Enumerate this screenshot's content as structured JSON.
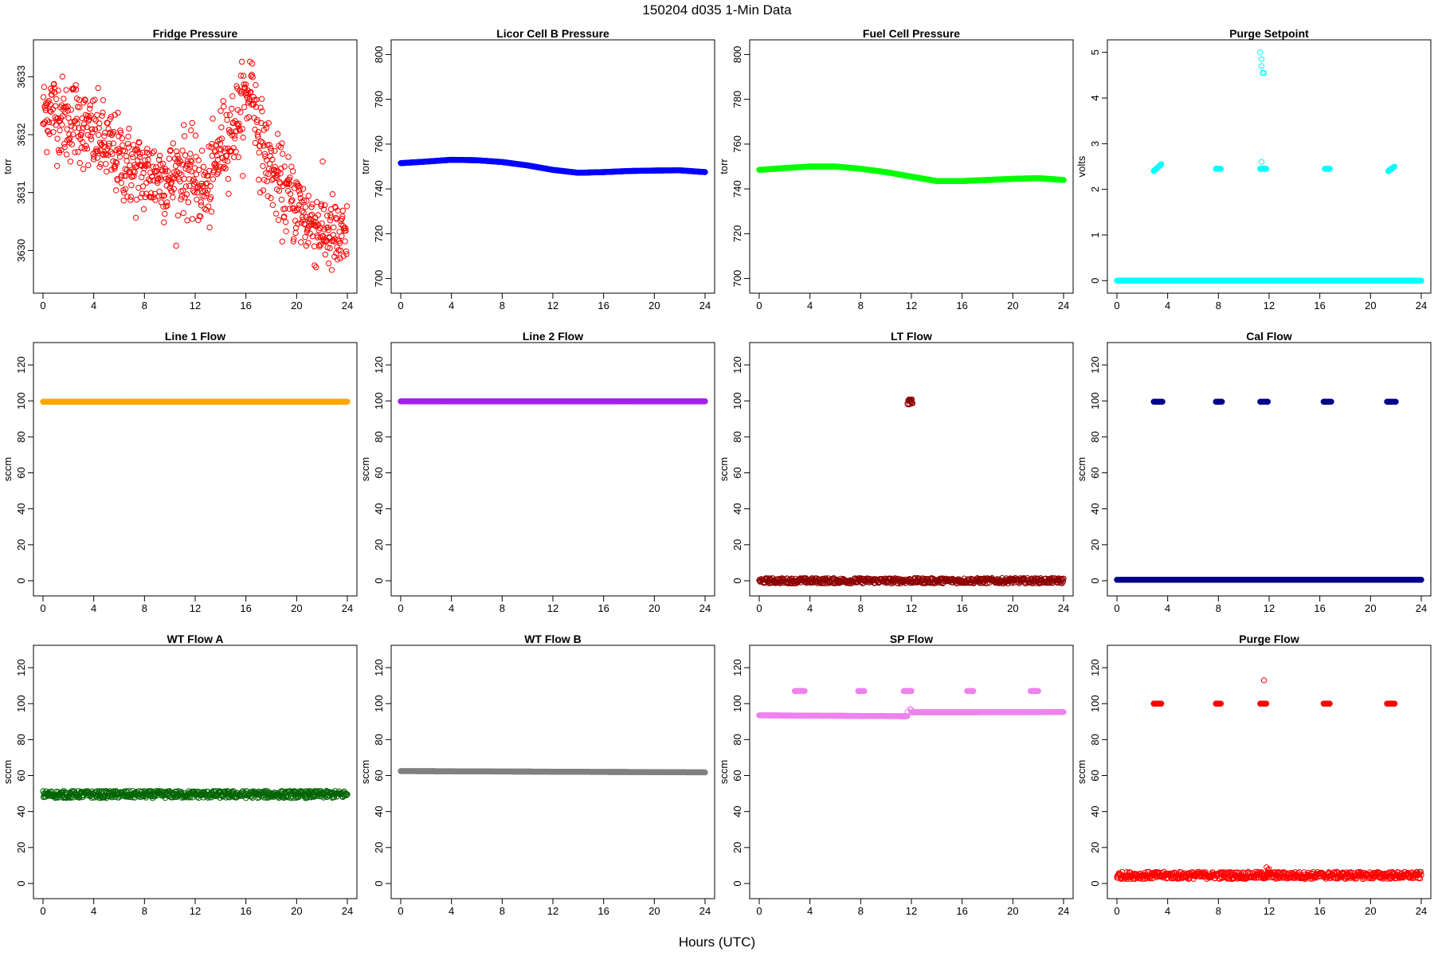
{
  "figure": {
    "title": "150204   d035   1-Min Data",
    "xlabel": "Hours (UTC)"
  },
  "chart_data": [
    {
      "type": "scatter",
      "title": "Fridge Pressure",
      "xlabel": "",
      "ylabel": "torr",
      "xlim": [
        0,
        24
      ],
      "ylim": [
        3629.4,
        3633.5
      ],
      "xticks": [
        0,
        4,
        8,
        12,
        16,
        20,
        24
      ],
      "yticks": [
        3630,
        3631,
        3632,
        3633
      ],
      "color": "#ff0000",
      "marker": "open-circle",
      "points": [
        [
          0,
          3632.3
        ],
        [
          0.5,
          3632.5
        ],
        [
          1,
          3632.4
        ],
        [
          1.5,
          3632.3
        ],
        [
          2,
          3632.2
        ],
        [
          2.5,
          3632.3
        ],
        [
          3,
          3632.2
        ],
        [
          3.5,
          3632.0
        ],
        [
          4,
          3632.0
        ],
        [
          5,
          3631.8
        ],
        [
          6,
          3631.6
        ],
        [
          7,
          3631.4
        ],
        [
          8,
          3631.3
        ],
        [
          9,
          3631.3
        ],
        [
          10,
          3631.2
        ],
        [
          11,
          3631.4
        ],
        [
          12,
          3631.2
        ],
        [
          13,
          3631.0
        ],
        [
          14,
          3631.8
        ],
        [
          15,
          3632.1
        ],
        [
          16,
          3632.6
        ],
        [
          16.5,
          3632.9
        ],
        [
          17,
          3632.0
        ],
        [
          18,
          3631.4
        ],
        [
          19,
          3631.0
        ],
        [
          20,
          3630.8
        ],
        [
          21,
          3630.5
        ],
        [
          22,
          3630.4
        ],
        [
          23,
          3630.2
        ],
        [
          24,
          3630.1
        ]
      ],
      "scatter_sd": 0.35
    },
    {
      "type": "scatter",
      "title": "Licor Cell B Pressure",
      "xlabel": "",
      "ylabel": "torr",
      "xlim": [
        0,
        24
      ],
      "ylim": [
        697,
        803
      ],
      "xticks": [
        0,
        4,
        8,
        12,
        16,
        20,
        24
      ],
      "yticks": [
        700,
        720,
        740,
        760,
        780,
        800
      ],
      "color": "#0000ff",
      "marker": "open-circle",
      "points": [
        [
          0,
          751.5
        ],
        [
          2,
          752.2
        ],
        [
          4,
          753
        ],
        [
          6,
          752.8
        ],
        [
          8,
          752
        ],
        [
          10,
          750.5
        ],
        [
          11,
          749.5
        ],
        [
          12,
          748.5
        ],
        [
          14,
          747.2
        ],
        [
          16,
          747.5
        ],
        [
          18,
          748
        ],
        [
          20,
          748.2
        ],
        [
          22,
          748.3
        ],
        [
          24,
          747.5
        ]
      ]
    },
    {
      "type": "scatter",
      "title": "Fuel Cell Pressure",
      "xlabel": "",
      "ylabel": "torr",
      "xlim": [
        0,
        24
      ],
      "ylim": [
        697,
        803
      ],
      "xticks": [
        0,
        4,
        8,
        12,
        16,
        20,
        24
      ],
      "yticks": [
        700,
        720,
        740,
        760,
        780,
        800
      ],
      "color": "#00ff00",
      "marker": "open-circle",
      "points": [
        [
          0,
          748.5
        ],
        [
          2,
          749.3
        ],
        [
          4,
          750
        ],
        [
          6,
          750
        ],
        [
          8,
          749
        ],
        [
          10,
          747.5
        ],
        [
          11,
          746.5
        ],
        [
          12,
          745.5
        ],
        [
          14,
          743.5
        ],
        [
          16,
          743.5
        ],
        [
          18,
          744
        ],
        [
          20,
          744.5
        ],
        [
          22,
          744.8
        ],
        [
          24,
          744
        ]
      ]
    },
    {
      "type": "scatter",
      "title": "Purge Setpoint",
      "xlabel": "",
      "ylabel": "volts",
      "xlim": [
        0,
        24
      ],
      "ylim": [
        -0.1,
        5.1
      ],
      "xticks": [
        0,
        4,
        8,
        12,
        16,
        20,
        24
      ],
      "yticks": [
        0,
        1,
        2,
        3,
        4,
        5
      ],
      "color": "#00ffff",
      "marker": "open-circle",
      "segments": [
        {
          "x": [
            0,
            24
          ],
          "y": 0
        },
        {
          "x": [
            2.9,
            3.5
          ],
          "y": [
            2.4,
            2.55
          ]
        },
        {
          "x": [
            7.8,
            8.2
          ],
          "y": 2.45
        },
        {
          "x": [
            11.3,
            11.8
          ],
          "y": 2.45
        },
        {
          "x": [
            16.4,
            16.8
          ],
          "y": 2.45
        },
        {
          "x": [
            21.4,
            21.9
          ],
          "y": [
            2.4,
            2.5
          ]
        }
      ],
      "points": [
        [
          11.3,
          5.0
        ],
        [
          11.4,
          4.85
        ],
        [
          11.4,
          4.7
        ],
        [
          11.5,
          4.55
        ],
        [
          11.6,
          4.55
        ],
        [
          11.4,
          2.6
        ]
      ]
    },
    {
      "type": "scatter",
      "title": "Line 1 Flow",
      "xlabel": "",
      "ylabel": "sccm",
      "xlim": [
        0,
        24
      ],
      "ylim": [
        -4,
        128
      ],
      "xticks": [
        0,
        4,
        8,
        12,
        16,
        20,
        24
      ],
      "yticks": [
        0,
        20,
        40,
        60,
        80,
        100,
        120
      ],
      "color": "#ffa500",
      "marker": "open-circle",
      "segments": [
        {
          "x": [
            0,
            24
          ],
          "y": 99.5
        }
      ]
    },
    {
      "type": "scatter",
      "title": "Line 2 Flow",
      "xlabel": "",
      "ylabel": "sccm",
      "xlim": [
        0,
        24
      ],
      "ylim": [
        -4,
        128
      ],
      "xticks": [
        0,
        4,
        8,
        12,
        16,
        20,
        24
      ],
      "yticks": [
        0,
        20,
        40,
        60,
        80,
        100,
        120
      ],
      "color": "#a020f0",
      "marker": "open-circle",
      "segments": [
        {
          "x": [
            0,
            24
          ],
          "y": 99.8
        }
      ]
    },
    {
      "type": "scatter",
      "title": "LT Flow",
      "xlabel": "",
      "ylabel": "sccm",
      "xlim": [
        0,
        24
      ],
      "ylim": [
        -4,
        128
      ],
      "xticks": [
        0,
        4,
        8,
        12,
        16,
        20,
        24
      ],
      "yticks": [
        0,
        20,
        40,
        60,
        80,
        100,
        120
      ],
      "color": "#8b0000",
      "marker": "open-circle",
      "segments": [
        {
          "x": [
            0,
            24
          ],
          "y": 0,
          "spread": 1.5
        },
        {
          "x": [
            11.7,
            12.1
          ],
          "y": 99.5,
          "spread": 1.5
        }
      ]
    },
    {
      "type": "scatter",
      "title": "Cal Flow",
      "xlabel": "",
      "ylabel": "sccm",
      "xlim": [
        0,
        24
      ],
      "ylim": [
        -4,
        128
      ],
      "xticks": [
        0,
        4,
        8,
        12,
        16,
        20,
        24
      ],
      "yticks": [
        0,
        20,
        40,
        60,
        80,
        100,
        120
      ],
      "color": "#00008b",
      "marker": "open-circle",
      "segments": [
        {
          "x": [
            0,
            24
          ],
          "y": 0.5
        },
        {
          "x": [
            2.9,
            3.6
          ],
          "y": 99.5
        },
        {
          "x": [
            7.8,
            8.3
          ],
          "y": 99.5
        },
        {
          "x": [
            11.3,
            11.9
          ],
          "y": 99.5
        },
        {
          "x": [
            16.3,
            16.9
          ],
          "y": 99.5
        },
        {
          "x": [
            21.3,
            22.0
          ],
          "y": 99.5
        }
      ]
    },
    {
      "type": "scatter",
      "title": "WT Flow A",
      "xlabel": "",
      "ylabel": "sccm",
      "xlim": [
        0,
        24
      ],
      "ylim": [
        -4,
        128
      ],
      "xticks": [
        0,
        4,
        8,
        12,
        16,
        20,
        24
      ],
      "yticks": [
        0,
        20,
        40,
        60,
        80,
        100,
        120
      ],
      "color": "#006400",
      "marker": "open-circle",
      "segments": [
        {
          "x": [
            0,
            24
          ],
          "y": 49.5,
          "spread": 2
        }
      ]
    },
    {
      "type": "scatter",
      "title": "WT Flow B",
      "xlabel": "",
      "ylabel": "sccm",
      "xlim": [
        0,
        24
      ],
      "ylim": [
        -4,
        128
      ],
      "xticks": [
        0,
        4,
        8,
        12,
        16,
        20,
        24
      ],
      "yticks": [
        0,
        20,
        40,
        60,
        80,
        100,
        120
      ],
      "color": "#808080",
      "marker": "open-circle",
      "segments": [
        {
          "x": [
            0,
            24
          ],
          "y": [
            62.5,
            61.8
          ]
        }
      ]
    },
    {
      "type": "scatter",
      "title": "SP Flow",
      "xlabel": "",
      "ylabel": "sccm",
      "xlim": [
        0,
        24
      ],
      "ylim": [
        -4,
        128
      ],
      "xticks": [
        0,
        4,
        8,
        12,
        16,
        20,
        24
      ],
      "yticks": [
        0,
        20,
        40,
        60,
        80,
        100,
        120
      ],
      "color": "#ee82ee",
      "marker": "open-circle",
      "segments": [
        {
          "x": [
            0,
            11.7
          ],
          "y": [
            93.5,
            93
          ]
        },
        {
          "x": [
            12.0,
            24
          ],
          "y": [
            95.2,
            95.3
          ]
        },
        {
          "x": [
            2.8,
            3.6
          ],
          "y": 107
        },
        {
          "x": [
            7.8,
            8.3
          ],
          "y": 107
        },
        {
          "x": [
            11.4,
            12.0
          ],
          "y": 107
        },
        {
          "x": [
            16.4,
            16.9
          ],
          "y": 107
        },
        {
          "x": [
            21.4,
            22.0
          ],
          "y": 107
        }
      ],
      "points": [
        [
          11.7,
          95.5
        ],
        [
          11.9,
          97
        ],
        [
          12.0,
          96.5
        ]
      ]
    },
    {
      "type": "scatter",
      "title": "Purge Flow",
      "xlabel": "",
      "ylabel": "sccm",
      "xlim": [
        0,
        24
      ],
      "ylim": [
        -4,
        128
      ],
      "xticks": [
        0,
        4,
        8,
        12,
        16,
        20,
        24
      ],
      "yticks": [
        0,
        20,
        40,
        60,
        80,
        100,
        120
      ],
      "color": "#ff0000",
      "marker": "open-circle",
      "segments": [
        {
          "x": [
            0,
            24
          ],
          "y": 4.5,
          "spread": 2
        },
        {
          "x": [
            2.9,
            3.5
          ],
          "y": 100
        },
        {
          "x": [
            7.8,
            8.2
          ],
          "y": 100
        },
        {
          "x": [
            11.3,
            11.8
          ],
          "y": 100
        },
        {
          "x": [
            16.3,
            16.8
          ],
          "y": 100
        },
        {
          "x": [
            21.3,
            21.9
          ],
          "y": 100
        }
      ],
      "points": [
        [
          11.6,
          113
        ],
        [
          11.8,
          9
        ],
        [
          11.9,
          7.5
        ],
        [
          12.0,
          8
        ]
      ]
    }
  ]
}
